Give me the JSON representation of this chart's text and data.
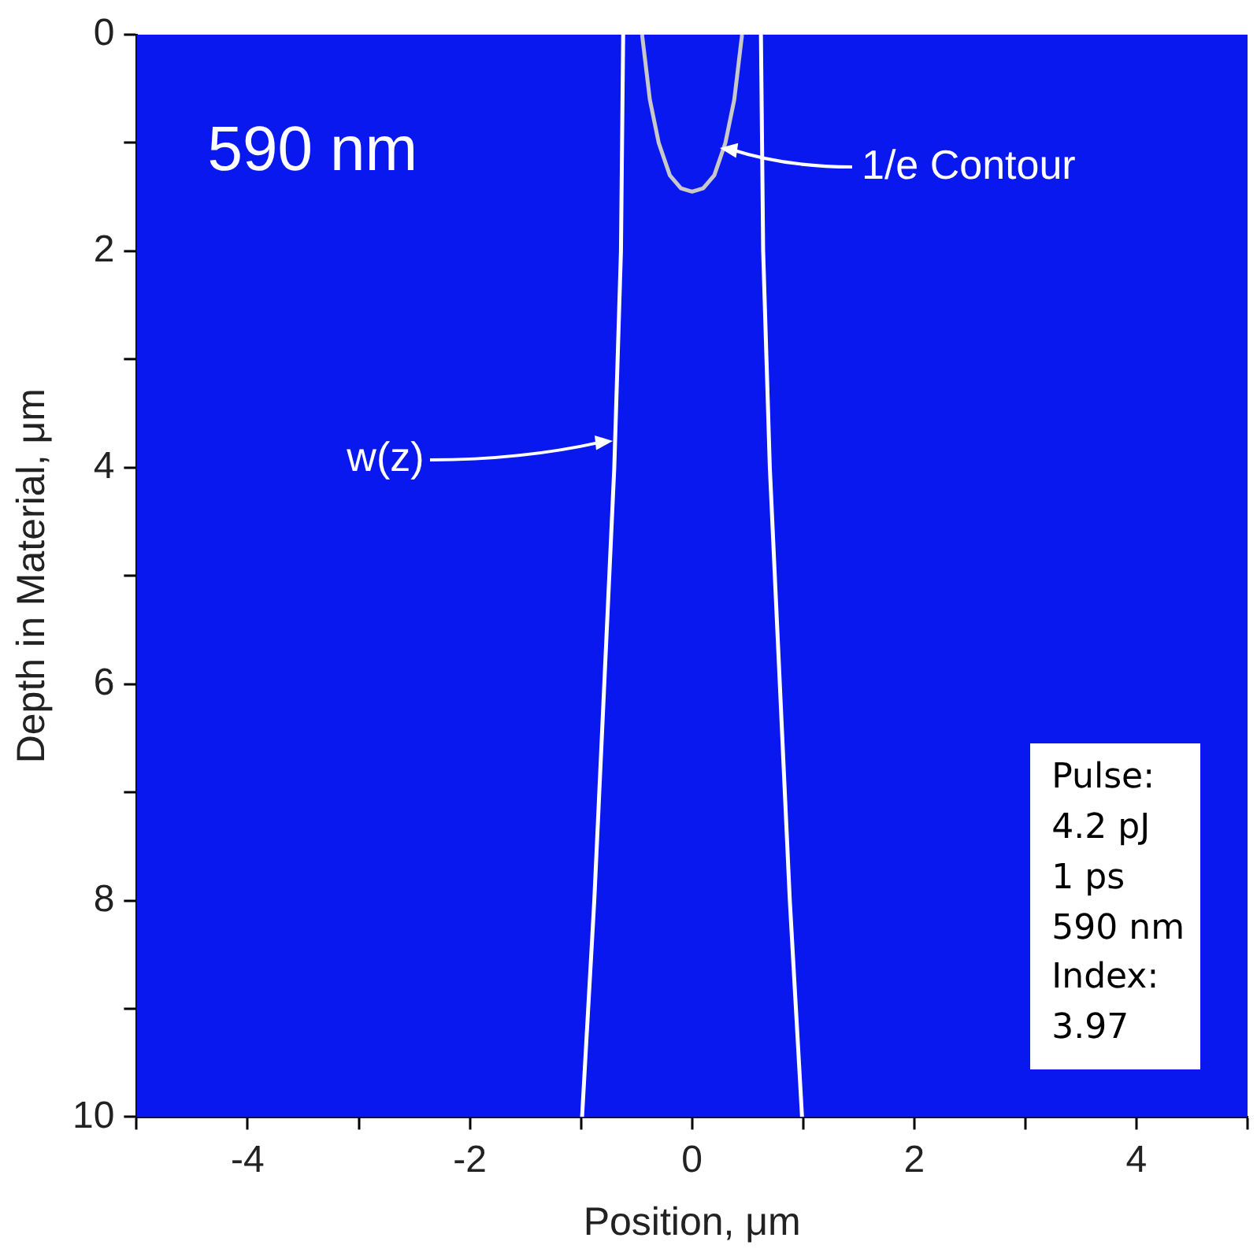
{
  "chart_data": {
    "type": "line",
    "xlabel": "Position, μm",
    "ylabel": "Depth in Material, μm",
    "xlim": [
      -5,
      5
    ],
    "xticks": [
      {
        "value": -5,
        "label": null
      },
      -4,
      {
        "value": -3,
        "label": null
      },
      -2,
      {
        "value": -1,
        "label": null
      },
      0,
      {
        "value": 1,
        "label": null
      },
      2,
      {
        "value": 3,
        "label": null
      },
      4,
      {
        "value": 5,
        "label": null
      }
    ],
    "ylim": [
      10,
      0
    ],
    "yticks": [
      0,
      {
        "value": 1,
        "label": null
      },
      2,
      {
        "value": 3,
        "label": null
      },
      4,
      {
        "value": 5,
        "label": null
      },
      6,
      {
        "value": 7,
        "label": null
      },
      8,
      {
        "value": 9,
        "label": null
      },
      10
    ],
    "series": [
      {
        "color": "#ffffff",
        "x": [
          -0.62,
          -0.64,
          -0.7,
          -0.79,
          -0.88,
          -0.99
        ],
        "values": [
          0,
          2,
          4,
          6,
          8,
          10
        ]
      },
      {
        "color": "#ffffff",
        "x": [
          0.62,
          0.64,
          0.7,
          0.79,
          0.88,
          0.99
        ],
        "values": [
          0,
          2,
          4,
          6,
          8,
          10
        ]
      },
      {
        "color": "#c8c8c8",
        "x": [
          -0.45,
          -0.38,
          -0.3,
          -0.2,
          -0.1,
          0,
          0.1,
          0.2,
          0.3,
          0.38,
          0.45
        ],
        "values": [
          0,
          0.6,
          1.0,
          1.3,
          1.42,
          1.45,
          1.42,
          1.3,
          1.0,
          0.6,
          0
        ]
      }
    ],
    "bands": [
      {
        "axis": "y",
        "from": 0,
        "to": 10,
        "color": "#0a18f0"
      }
    ],
    "annotations": [
      "590 nm",
      "Pulse:\n4.2 pJ\n1 ps\n590 nm\nIndex:\n3.97",
      {
        "text": "1/e Contour",
        "x": 0.25,
        "y": 1.05
      },
      {
        "text": "w(z)",
        "x": -0.71,
        "y": 3.75
      }
    ],
    "grid": false,
    "legend": false,
    "marker": "none",
    "line_style": "solid"
  }
}
